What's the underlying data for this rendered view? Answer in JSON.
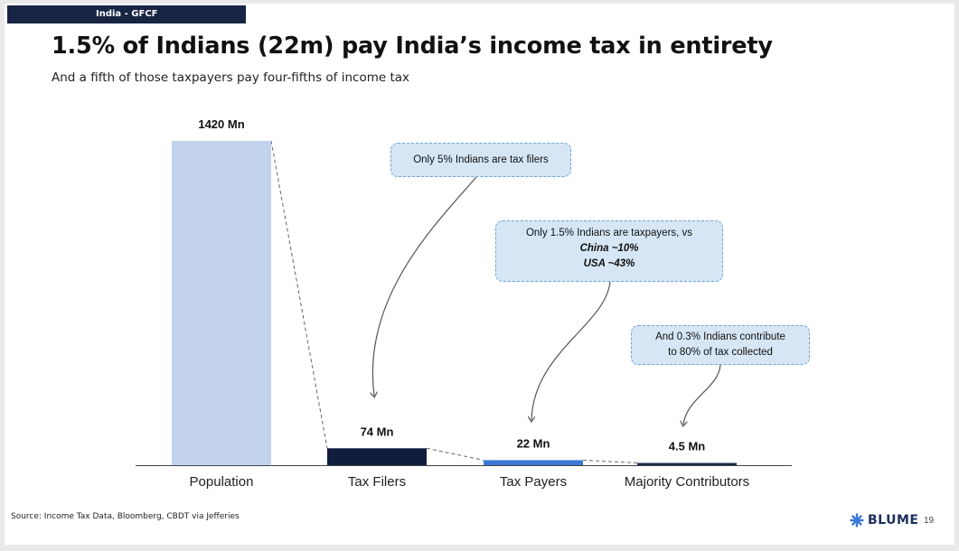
{
  "header": {
    "tag": "India - GFCF"
  },
  "title": "1.5% of Indians (22m) pay India’s income tax in entirety",
  "subtitle": "And a fifth of those taxpayers pay four-fifths of income tax",
  "chart_data": {
    "type": "bar",
    "unit": "Mn",
    "categories": [
      "Population",
      "Tax Filers",
      "Tax Payers",
      "Majority Contributors"
    ],
    "values": [
      1420,
      74,
      22,
      4.5
    ],
    "value_labels": [
      "1420 Mn",
      "74 Mn",
      "22 Mn",
      "4.5 Mn"
    ],
    "colors": [
      "#c3d3ee",
      "#101d3d",
      "#3a78d8",
      "#1b2a4a"
    ],
    "ylim": [
      0,
      1420
    ],
    "grid": false,
    "legend": "none",
    "annotations": [
      {
        "target": "Tax Filers",
        "lines": [
          "Only 5% Indians are tax filers"
        ],
        "emphasis": []
      },
      {
        "target": "Tax Payers",
        "lines": [
          "Only 1.5% Indians  are taxpayers, vs"
        ],
        "emphasis": [
          "China ~10%",
          "USA ~43%"
        ]
      },
      {
        "target": "Majority Contributors",
        "lines": [
          "And 0.3% Indians contribute",
          "to 80% of tax collected"
        ],
        "emphasis": []
      }
    ]
  },
  "footer": {
    "source": "Source: Income Tax Data, Bloomberg,  CBDT via Jefferies",
    "brand": "BLUME",
    "page": "19"
  }
}
